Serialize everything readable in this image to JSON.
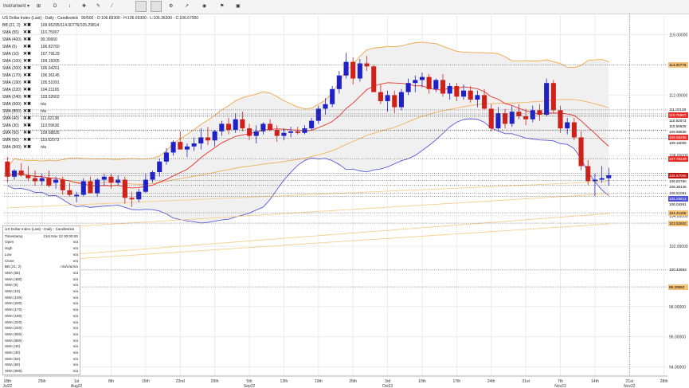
{
  "toolbar": {
    "instrument_label": "Instrument",
    "type_label": "D"
  },
  "header": {
    "title": "US Dollar Index (Last) - Daily - Candlestick",
    "ohlc": "90/500 - O:106.69300 - H:106.69300 - L:106.36300 - C:106.67000"
  },
  "legend": [
    {
      "name": "BB (21, 2)",
      "value": "109.65295/114.00776/105.29814"
    },
    {
      "name": "SMA (55)",
      "value": "110.75907"
    },
    {
      "name": "SMA (400)",
      "value": "99.30660"
    },
    {
      "name": "SMA (5)",
      "value": "106.82760"
    },
    {
      "name": "SMA (10)",
      "value": "107.79129"
    },
    {
      "name": "SMA (100)",
      "value": "109.15005"
    },
    {
      "name": "SMA (200)",
      "value": "106.04261"
    },
    {
      "name": "SMA (170)",
      "value": "106.36145"
    },
    {
      "name": "SMA (190)",
      "value": "105.51091"
    },
    {
      "name": "SMA (220)",
      "value": "104.21165"
    },
    {
      "name": "SMA (240)",
      "value": "103.52602"
    },
    {
      "name": "SMA (600)",
      "value": "n/a"
    },
    {
      "name": "SMA (800)",
      "value": "n/a"
    },
    {
      "name": "SMA (40)",
      "value": "111.02138"
    },
    {
      "name": "SMA (30)",
      "value": "110.59630"
    },
    {
      "name": "SMA (50)",
      "value": "109.68835"
    },
    {
      "name": "SMA (60)",
      "value": "110.62073"
    },
    {
      "name": "SMA (900)",
      "value": "n/a"
    }
  ],
  "info_panel": {
    "title": "US Dollar Index (Last) - Daily - Candlestick",
    "rows": [
      {
        "k": "Timestamp",
        "v": "21st Nov 22 00:00:00"
      },
      {
        "k": "Open",
        "v": "n/a"
      },
      {
        "k": "High",
        "v": "n/a"
      },
      {
        "k": "Low",
        "v": "n/a"
      },
      {
        "k": "Close",
        "v": "n/a"
      },
      {
        "k": "BB (21, 2)",
        "v": "n/a/n/a/n/a"
      },
      {
        "k": "SMA (55)",
        "v": "n/a"
      },
      {
        "k": "SMA (400)",
        "v": "n/a"
      },
      {
        "k": "SMA (5)",
        "v": "n/a"
      },
      {
        "k": "SMA (10)",
        "v": "n/a"
      },
      {
        "k": "SMA (100)",
        "v": "n/a"
      },
      {
        "k": "SMA (200)",
        "v": "n/a"
      },
      {
        "k": "SMA (170)",
        "v": "n/a"
      },
      {
        "k": "SMA (190)",
        "v": "n/a"
      },
      {
        "k": "SMA (220)",
        "v": "n/a"
      },
      {
        "k": "SMA (240)",
        "v": "n/a"
      },
      {
        "k": "SMA (600)",
        "v": "n/a"
      },
      {
        "k": "SMA (800)",
        "v": "n/a"
      },
      {
        "k": "SMA (40)",
        "v": "n/a"
      },
      {
        "k": "SMA (30)",
        "v": "n/a"
      },
      {
        "k": "SMA (50)",
        "v": "n/a"
      },
      {
        "k": "SMA (60)",
        "v": "n/a"
      },
      {
        "k": "SMA (900)",
        "v": "n/a"
      }
    ]
  },
  "price_labels": [
    {
      "v": "114.00776",
      "bg": "#f5c27a",
      "fg": "#000000"
    },
    {
      "v": "111.02138",
      "bg": "#ffffff",
      "fg": "#000000"
    },
    {
      "v": "110.75907",
      "bg": "#e8302b",
      "fg": "#ffffff"
    },
    {
      "v": "110.62073",
      "bg": "#ffffff",
      "fg": "#000000"
    },
    {
      "v": "110.59630",
      "bg": "#ffffff",
      "fg": "#000000"
    },
    {
      "v": "109.68835",
      "bg": "#ffffff",
      "fg": "#000000"
    },
    {
      "v": "109.65295",
      "bg": "#e8302b",
      "fg": "#ffffff"
    },
    {
      "v": "109.15005",
      "bg": "#ffffff",
      "fg": "#000000"
    },
    {
      "v": "107.79129",
      "bg": "#e8302b",
      "fg": "#ffffff"
    },
    {
      "v": "106.67000",
      "bg": "#c0150f",
      "fg": "#ffffff"
    },
    {
      "v": "106.82760",
      "bg": "#ffffff",
      "fg": "#000000"
    },
    {
      "v": "106.36145",
      "bg": "#ffffff",
      "fg": "#000000"
    },
    {
      "v": "105.51091",
      "bg": "#ffffff",
      "fg": "#000000"
    },
    {
      "v": "105.29814",
      "bg": "#5050d8",
      "fg": "#ffffff"
    },
    {
      "v": "106.04261",
      "bg": "#ffffff",
      "fg": "#000000"
    },
    {
      "v": "104.21165",
      "bg": "#f5c27a",
      "fg": "#000000"
    },
    {
      "v": "103.52602",
      "bg": "#f5c27a",
      "fg": "#000000"
    },
    {
      "v": "100.42683",
      "bg": "#ffffff",
      "fg": "#000000"
    },
    {
      "v": "99.30660",
      "bg": "#f5c27a",
      "fg": "#000000"
    }
  ],
  "chart_data": {
    "type": "candlestick",
    "title": "US Dollar Index (Last) - Daily - Candlestick",
    "y_range": [
      93.4,
      117.4
    ],
    "y_ticks": [
      "116.00000",
      "112.00000",
      "108.00000",
      "104.00000",
      "102.00000",
      "98.00000",
      "96.00000",
      "94.00000"
    ],
    "y_tick_values": [
      116,
      112,
      108,
      104,
      102,
      98,
      96,
      94
    ],
    "x_ticks": [
      {
        "label": "18th",
        "sub": "Jul22",
        "i": 0
      },
      {
        "label": "25th",
        "sub": "",
        "i": 5
      },
      {
        "label": "1st",
        "sub": "Aug22",
        "i": 10
      },
      {
        "label": "8th",
        "sub": "",
        "i": 15
      },
      {
        "label": "15th",
        "sub": "",
        "i": 20
      },
      {
        "label": "22nd",
        "sub": "",
        "i": 25
      },
      {
        "label": "29th",
        "sub": "",
        "i": 30
      },
      {
        "label": "5th",
        "sub": "Sep22",
        "i": 35
      },
      {
        "label": "12th",
        "sub": "",
        "i": 40
      },
      {
        "label": "19th",
        "sub": "",
        "i": 45
      },
      {
        "label": "26th",
        "sub": "",
        "i": 50
      },
      {
        "label": "3rd",
        "sub": "Oct22",
        "i": 55
      },
      {
        "label": "10th",
        "sub": "",
        "i": 60
      },
      {
        "label": "17th",
        "sub": "",
        "i": 65
      },
      {
        "label": "24th",
        "sub": "",
        "i": 70
      },
      {
        "label": "31st",
        "sub": "",
        "i": 75
      },
      {
        "label": "7th",
        "sub": "Nov22",
        "i": 80
      },
      {
        "label": "14th",
        "sub": "",
        "i": 85
      },
      {
        "label": "21st",
        "sub": "Nov22",
        "i": 90
      },
      {
        "label": "28th",
        "sub": "",
        "i": 95
      }
    ],
    "candles": [
      [
        107.6,
        107.9,
        106.2,
        106.6
      ],
      [
        106.6,
        107.1,
        106.4,
        107.0
      ],
      [
        107.0,
        107.5,
        106.6,
        106.7
      ],
      [
        106.7,
        107.3,
        106.3,
        106.5
      ],
      [
        106.5,
        107.0,
        106.0,
        106.3
      ],
      [
        106.3,
        106.8,
        106.0,
        106.5
      ],
      [
        106.5,
        107.0,
        105.9,
        106.0
      ],
      [
        106.2,
        106.6,
        105.8,
        106.4
      ],
      [
        106.4,
        106.6,
        105.4,
        105.7
      ],
      [
        105.7,
        106.2,
        105.3,
        105.4
      ],
      [
        105.3,
        105.6,
        104.9,
        105.4
      ],
      [
        105.4,
        106.5,
        105.3,
        106.3
      ],
      [
        106.3,
        106.6,
        105.5,
        105.5
      ],
      [
        105.5,
        106.5,
        105.3,
        106.4
      ],
      [
        106.4,
        106.8,
        106.0,
        106.6
      ],
      [
        106.6,
        106.8,
        105.8,
        106.2
      ],
      [
        106.2,
        106.7,
        106.0,
        106.4
      ],
      [
        106.4,
        106.6,
        104.8,
        105.2
      ],
      [
        105.2,
        105.6,
        104.6,
        105.1
      ],
      [
        105.1,
        105.8,
        104.9,
        105.6
      ],
      [
        105.6,
        106.8,
        105.5,
        106.4
      ],
      [
        106.4,
        107.0,
        106.2,
        106.9
      ],
      [
        106.9,
        107.8,
        106.6,
        107.6
      ],
      [
        107.6,
        108.5,
        107.4,
        108.2
      ],
      [
        108.2,
        109.0,
        108.0,
        108.9
      ],
      [
        108.9,
        109.6,
        108.6,
        108.4
      ],
      [
        108.4,
        108.8,
        107.9,
        108.6
      ],
      [
        108.6,
        109.2,
        108.3,
        108.8
      ],
      [
        108.8,
        109.8,
        108.4,
        109.2
      ],
      [
        109.2,
        109.9,
        108.7,
        109.0
      ],
      [
        109.0,
        109.7,
        108.6,
        109.6
      ],
      [
        109.6,
        110.3,
        109.3,
        110.1
      ],
      [
        110.1,
        110.5,
        109.4,
        109.7
      ],
      [
        109.7,
        110.8,
        109.5,
        110.4
      ],
      [
        110.4,
        110.9,
        109.6,
        109.8
      ],
      [
        109.8,
        110.1,
        109.0,
        109.3
      ],
      [
        109.3,
        110.0,
        108.8,
        109.6
      ],
      [
        109.6,
        110.2,
        109.4,
        110.1
      ],
      [
        110.1,
        110.4,
        109.6,
        109.7
      ],
      [
        109.7,
        110.0,
        108.9,
        109.3
      ],
      [
        109.3,
        109.8,
        109.0,
        109.5
      ],
      [
        109.5,
        109.9,
        109.2,
        109.6
      ],
      [
        109.6,
        109.9,
        109.4,
        109.5
      ],
      [
        109.5,
        110.0,
        109.4,
        109.8
      ],
      [
        109.8,
        110.5,
        109.7,
        110.3
      ],
      [
        110.3,
        111.3,
        110.1,
        111.1
      ],
      [
        111.1,
        111.8,
        110.7,
        111.4
      ],
      [
        111.4,
        112.6,
        111.2,
        112.4
      ],
      [
        112.4,
        113.6,
        112.1,
        113.3
      ],
      [
        113.3,
        114.8,
        113.1,
        114.2
      ],
      [
        114.2,
        114.5,
        112.7,
        113.1
      ],
      [
        113.1,
        114.4,
        112.9,
        114.1
      ],
      [
        114.1,
        114.6,
        113.6,
        113.9
      ],
      [
        113.9,
        114.0,
        112.3,
        112.2
      ],
      [
        112.2,
        112.7,
        111.4,
        111.6
      ],
      [
        111.6,
        112.3,
        110.9,
        112.0
      ],
      [
        112.0,
        112.3,
        110.8,
        111.2
      ],
      [
        111.2,
        112.4,
        111.0,
        112.2
      ],
      [
        112.2,
        113.1,
        112.0,
        112.8
      ],
      [
        112.8,
        113.3,
        112.2,
        113.0
      ],
      [
        113.0,
        113.5,
        112.5,
        113.2
      ],
      [
        113.2,
        113.4,
        112.1,
        112.4
      ],
      [
        112.4,
        113.1,
        112.2,
        113.0
      ],
      [
        113.0,
        113.4,
        111.9,
        112.1
      ],
      [
        112.1,
        112.8,
        111.7,
        112.6
      ],
      [
        112.6,
        112.8,
        111.6,
        111.9
      ],
      [
        111.9,
        112.7,
        111.7,
        112.3
      ],
      [
        112.3,
        112.6,
        111.5,
        111.7
      ],
      [
        111.7,
        112.3,
        111.2,
        112.0
      ],
      [
        112.0,
        112.4,
        111.0,
        111.1
      ],
      [
        111.1,
        111.4,
        109.6,
        109.8
      ],
      [
        109.8,
        111.2,
        109.6,
        110.8
      ],
      [
        110.8,
        111.1,
        109.8,
        110.1
      ],
      [
        110.1,
        111.3,
        109.9,
        110.9
      ],
      [
        110.9,
        111.4,
        110.4,
        110.6
      ],
      [
        110.6,
        111.1,
        110.0,
        110.4
      ],
      [
        110.4,
        111.3,
        110.2,
        111.0
      ],
      [
        111.0,
        111.4,
        110.3,
        110.7
      ],
      [
        110.7,
        113.1,
        110.6,
        112.8
      ],
      [
        112.8,
        113.0,
        110.8,
        111.0
      ],
      [
        111.0,
        111.3,
        109.5,
        109.8
      ],
      [
        109.8,
        110.5,
        109.4,
        110.2
      ],
      [
        110.2,
        110.5,
        109.0,
        109.2
      ],
      [
        109.2,
        109.6,
        107.0,
        107.3
      ],
      [
        107.3,
        107.7,
        106.0,
        106.3
      ],
      [
        106.3,
        106.8,
        105.3,
        106.4
      ],
      [
        106.4,
        107.3,
        106.2,
        106.5
      ],
      [
        106.5,
        107.2,
        106.0,
        106.7
      ]
    ]
  }
}
